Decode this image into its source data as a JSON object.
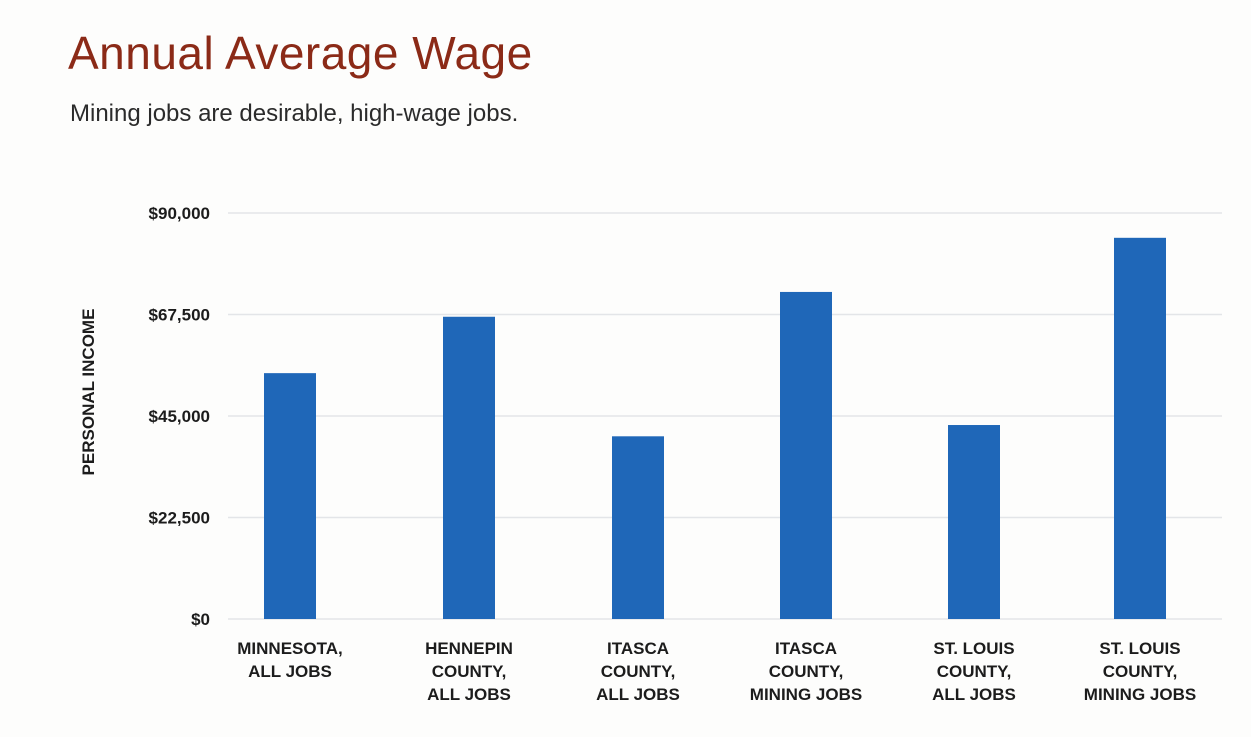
{
  "header": {
    "title": "Annual Average Wage",
    "subtitle": "Mining jobs are desirable, high-wage jobs."
  },
  "chart_data": {
    "type": "bar",
    "ylabel": "PERSONAL INCOME",
    "xlabel": "",
    "ylim": [
      0,
      90000
    ],
    "y_ticks": [
      0,
      22500,
      45000,
      67500,
      90000
    ],
    "y_tick_labels": [
      "$0",
      "$22,500",
      "$45,000",
      "$67,500",
      "$90,000"
    ],
    "grid": true,
    "categories": [
      [
        "MINNESOTA,",
        "ALL JOBS"
      ],
      [
        "HENNEPIN",
        "COUNTY,",
        "ALL JOBS"
      ],
      [
        "ITASCA",
        "COUNTY,",
        "ALL JOBS"
      ],
      [
        "ITASCA",
        "COUNTY,",
        "MINING JOBS"
      ],
      [
        "ST. LOUIS",
        "COUNTY,",
        "ALL JOBS"
      ],
      [
        "ST. LOUIS",
        "COUNTY,",
        "MINING JOBS"
      ]
    ],
    "values": [
      54500,
      67000,
      40500,
      72500,
      43000,
      84500
    ],
    "bar_color": "#1f67b8",
    "grid_color": "#e3e5e8"
  }
}
